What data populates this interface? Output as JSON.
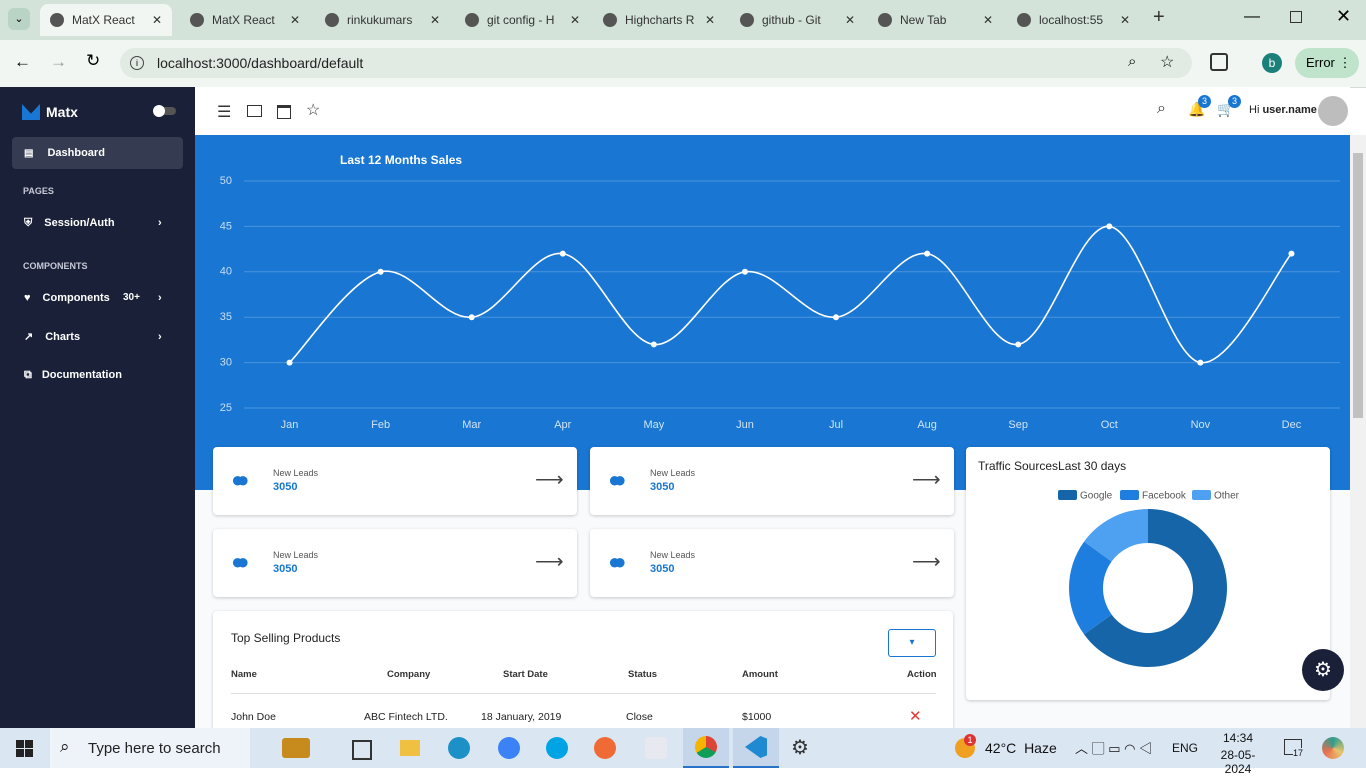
{
  "browser": {
    "tabs": [
      "MatX React",
      "MatX React",
      "rinkukumars",
      "git config - H",
      "Highcharts R",
      "github - Git",
      "New Tab",
      "localhost:55"
    ],
    "url": "localhost:3000/dashboard/default",
    "profile": "b",
    "status": "Error"
  },
  "sidebar": {
    "brand": "Matx",
    "dashboard": "Dashboard",
    "sections": [
      "PAGES",
      "COMPONENTS"
    ],
    "session": "Session/Auth",
    "components": "Components",
    "components_badge": "30+",
    "charts": "Charts",
    "documentation": "Documentation"
  },
  "topbar": {
    "notifications": 3,
    "cart": 3,
    "greeting": "Hi",
    "user": "user.name"
  },
  "chart_data": [
    {
      "type": "line",
      "title": "Last 12 Months Sales",
      "categories": [
        "Jan",
        "Feb",
        "Mar",
        "Apr",
        "May",
        "Jun",
        "Jul",
        "Aug",
        "Sep",
        "Oct",
        "Nov",
        "Dec"
      ],
      "values": [
        30,
        40,
        35,
        42,
        32,
        40,
        35,
        42,
        32,
        45,
        30,
        42
      ],
      "color": "#ffffff",
      "ylim": [
        25,
        50
      ],
      "yticks": [
        25,
        30,
        35,
        40,
        45,
        50
      ],
      "grid": true
    },
    {
      "type": "pie",
      "title": "Traffic SourcesLast 30 days",
      "categories": [
        "Google",
        "Facebook",
        "Other"
      ],
      "values": [
        65,
        20,
        15
      ],
      "colors": [
        "#1565a8",
        "#1e7ee0",
        "#4ea0f0"
      ],
      "donut": true,
      "legend": "top"
    }
  ],
  "stat_cards": [
    {
      "label": "New Leads",
      "value": 3050
    },
    {
      "label": "New Leads",
      "value": 3050
    },
    {
      "label": "New Leads",
      "value": 3050
    },
    {
      "label": "New Leads",
      "value": 3050
    }
  ],
  "table": {
    "title": "Top Selling Products",
    "columns": [
      "Name",
      "Company",
      "Start Date",
      "Status",
      "Amount",
      "Action"
    ],
    "rows": [
      [
        "John Doe",
        "ABC Fintech LTD.",
        "18 January, 2019",
        "Close",
        "$1000"
      ]
    ]
  },
  "taskbar": {
    "search": "Type here to search",
    "temperature": "42°C",
    "condition": "Haze",
    "weather_badge": 1,
    "language": "ENG",
    "time": "14:34",
    "date": "28-05-2024",
    "notifications": 17
  }
}
